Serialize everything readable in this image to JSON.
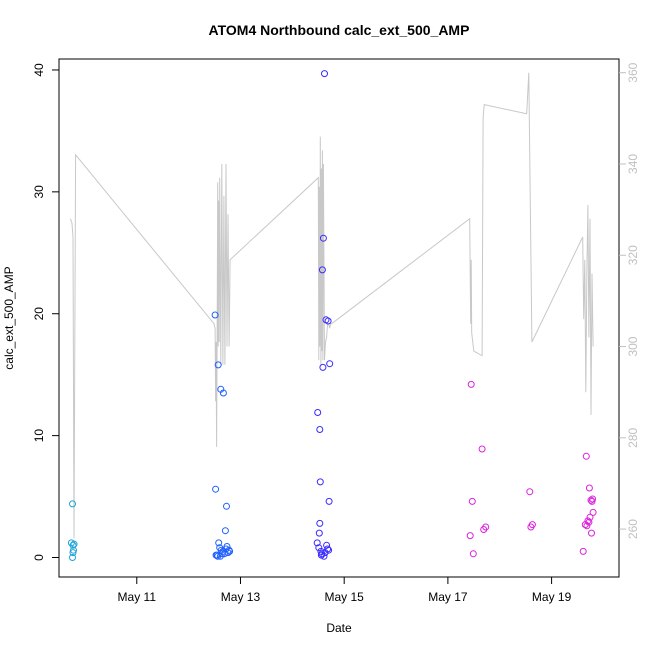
{
  "chart_data": {
    "type": "scatter",
    "title": "ATOM4 Northbound calc_ext_500_AMP",
    "xlabel": "Date",
    "ylabel": "calc_ext_500_AMP",
    "x_ticks": [
      "May 11",
      "May 13",
      "May 15",
      "May 17",
      "May 19"
    ],
    "x_tick_values": [
      11,
      13,
      15,
      17,
      19
    ],
    "xlim": [
      9.5,
      20.3
    ],
    "ylim": [
      -1.6,
      40.9
    ],
    "y_ticks": [
      0,
      10,
      20,
      30,
      40
    ],
    "y2lim": [
      249.5,
      363
    ],
    "y2_ticks": [
      260,
      280,
      300,
      320,
      340,
      360
    ],
    "grid": false,
    "legend": "none",
    "colors": {
      "points_early": "#1aa3d9",
      "points_mid": "#1f3fff",
      "points_late": "#dd22dd",
      "line": "#c8c8c8",
      "axis": "#000000",
      "secondary_axis": "#c0c0c0"
    },
    "point_series": [
      {
        "color": "#1aa3d9",
        "x": [
          9.76,
          9.74,
          9.77,
          9.79,
          9.78,
          9.77,
          9.76
        ],
        "y": [
          4.4,
          1.2,
          1.0,
          1.1,
          0.6,
          0.4,
          0.0
        ]
      },
      {
        "color": "#1f5fff",
        "x": [
          12.51,
          12.52,
          12.57,
          12.58,
          12.62,
          12.67,
          12.73,
          12.71,
          12.74,
          12.56,
          12.53,
          12.6,
          12.63,
          12.66,
          12.69,
          12.72,
          12.76,
          12.78,
          12.79,
          12.55,
          12.61,
          12.65
        ],
        "y": [
          19.9,
          5.6,
          15.8,
          1.2,
          13.8,
          13.5,
          4.2,
          2.2,
          0.9,
          0.1,
          0.2,
          0.8,
          0.6,
          0.5,
          0.3,
          0.7,
          0.4,
          0.6,
          0.5,
          0.2,
          0.1,
          0.3
        ]
      },
      {
        "color": "#3a2bff",
        "x": [
          14.62,
          14.6,
          14.58,
          14.65,
          14.69,
          14.49,
          14.53,
          14.54,
          14.59,
          14.72,
          14.71,
          14.53,
          14.48,
          14.51,
          14.55,
          14.57,
          14.61,
          14.63,
          14.66,
          14.68,
          14.7,
          14.56,
          14.52
        ],
        "y": [
          39.7,
          26.2,
          23.6,
          19.5,
          19.4,
          11.9,
          10.5,
          6.2,
          15.6,
          15.9,
          4.6,
          2.8,
          1.2,
          0.8,
          0.5,
          0.3,
          0.1,
          0.4,
          1.0,
          0.7,
          0.6,
          0.2,
          2.0
        ]
      },
      {
        "color": "#dd22dd",
        "x": [
          17.45,
          17.66,
          17.47,
          17.43,
          17.49,
          17.69,
          17.73,
          18.58,
          18.6,
          18.63,
          19.61,
          19.67,
          19.73,
          19.76,
          19.78,
          19.8,
          19.74,
          19.7,
          19.65,
          19.68,
          19.72,
          19.77,
          19.79
        ],
        "y": [
          14.2,
          8.9,
          4.6,
          1.8,
          0.3,
          2.3,
          2.5,
          5.4,
          2.5,
          2.7,
          0.5,
          8.3,
          5.7,
          4.7,
          4.6,
          3.7,
          3.3,
          3.0,
          2.7,
          2.6,
          2.9,
          2.0,
          4.8
        ]
      }
    ],
    "line_series": {
      "color": "#c8c8c8",
      "axis": "secondary",
      "x": [
        9.72,
        9.75,
        9.77,
        9.79,
        9.82,
        12.49,
        12.51,
        12.52,
        12.53,
        12.54,
        12.55,
        12.56,
        12.57,
        12.58,
        12.59,
        12.6,
        12.62,
        12.64,
        12.66,
        12.68,
        12.7,
        12.72,
        12.74,
        12.76,
        12.78,
        12.8,
        14.5,
        14.51,
        14.52,
        14.53,
        14.54,
        14.55,
        14.56,
        14.57,
        14.58,
        14.59,
        14.6,
        14.62,
        14.64,
        14.66,
        14.68,
        14.7,
        14.72,
        14.74,
        14.76,
        17.42,
        17.43,
        17.44,
        17.45,
        17.46,
        17.5,
        17.66,
        17.68,
        17.7,
        18.52,
        18.56,
        18.62,
        19.6,
        19.62,
        19.64,
        19.66,
        19.68,
        19.7,
        19.72,
        19.74,
        19.76,
        19.78,
        19.8
      ],
      "y": [
        328,
        327,
        324,
        258,
        342,
        305,
        304,
        288,
        301,
        278,
        300,
        336,
        300,
        332,
        301,
        337,
        296,
        340,
        296,
        333,
        296,
        340,
        300,
        329,
        300,
        319,
        337,
        297,
        335,
        300,
        346,
        296,
        339,
        299,
        343,
        297,
        340,
        297,
        301,
        302,
        305,
        305,
        304,
        305,
        305,
        328,
        316,
        305,
        319,
        303,
        299,
        298,
        350,
        353,
        351,
        360,
        301,
        324,
        306,
        319,
        290,
        317,
        331,
        302,
        328,
        285,
        316,
        300
      ]
    }
  }
}
